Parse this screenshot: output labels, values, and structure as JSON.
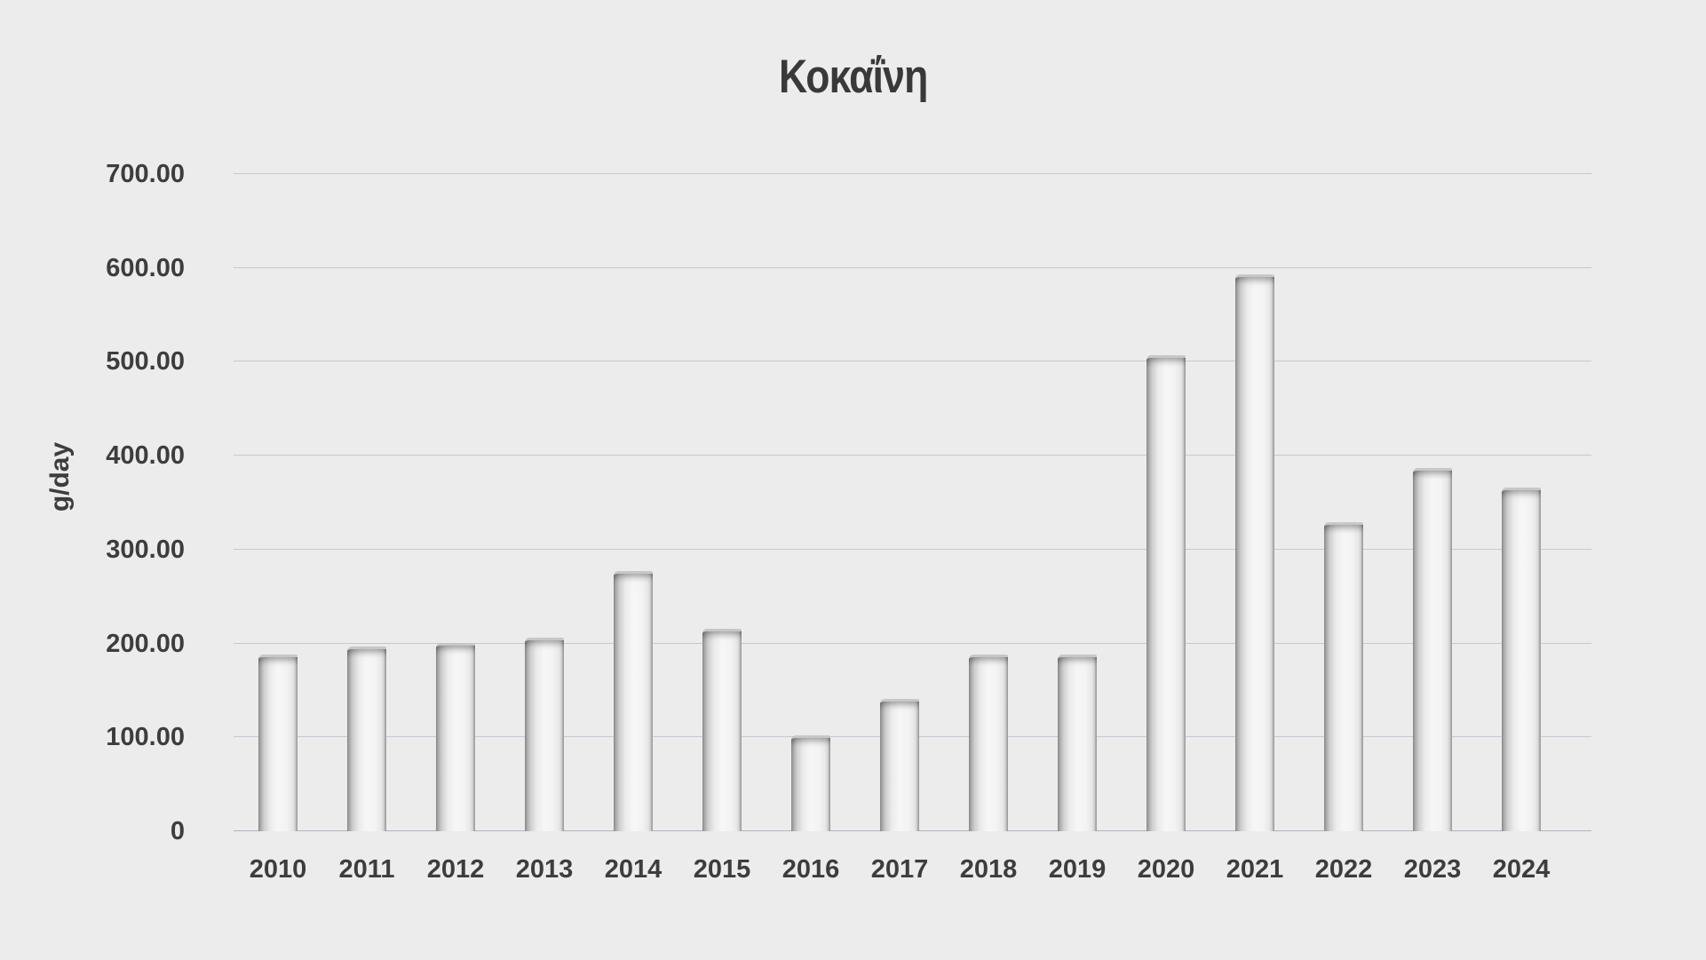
{
  "title": "Κοκαΐνη",
  "colors": {
    "background": "#ececec",
    "text": "#3d3d3d",
    "gridline": "#c9c7d2",
    "baseline": "#b4b2bd",
    "bar_body": "#f3f3f3",
    "bar_shadow": "#878787"
  },
  "chart_data": {
    "type": "bar",
    "title": "Κοκαΐνη",
    "xlabel": "",
    "ylabel": "g/day",
    "categories": [
      "2010",
      "2011",
      "2012",
      "2013",
      "2014",
      "2015",
      "2016",
      "2017",
      "2018",
      "2019",
      "2020",
      "2021",
      "2022",
      "2023",
      "2024"
    ],
    "values": [
      185,
      194,
      198,
      203,
      274,
      213,
      99,
      138,
      185,
      185,
      504,
      590,
      326,
      384,
      363
    ],
    "ylim": [
      0,
      700
    ],
    "ytick_values": [
      0,
      100,
      200,
      300,
      400,
      500,
      600,
      700
    ],
    "ytick_labels": [
      "0",
      "100.00",
      "200.00",
      "300.00",
      "400.00",
      "500.00",
      "600.00",
      "700.00"
    ],
    "grid": true,
    "legend": false
  }
}
